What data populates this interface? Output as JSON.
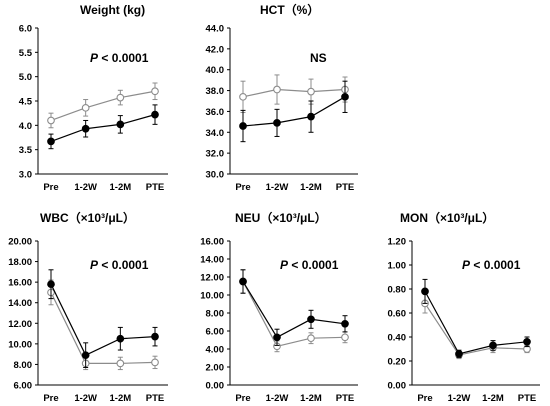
{
  "colors": {
    "series_dark": "#000000",
    "series_light": "#8c8c8c",
    "light_fill": "#ffffff",
    "axis": "#000000"
  },
  "chart_data": [
    {
      "type": "line",
      "title": "Weight (kg)",
      "annotation": {
        "italic": "P",
        "rest": " < 0.0001"
      },
      "categories": [
        "Pre",
        "1-2W",
        "1-2M",
        "PTE"
      ],
      "ylim": [
        3.0,
        6.0
      ],
      "yticks": [
        3.0,
        3.5,
        4.0,
        4.5,
        5.0,
        5.5,
        6.0
      ],
      "ytick_labels": [
        "3.0",
        "3.5",
        "4.0",
        "4.5",
        "5.0",
        "5.5",
        "6.0"
      ],
      "series": [
        {
          "style": "filled",
          "values": [
            3.67,
            3.93,
            4.02,
            4.22
          ],
          "errors": [
            0.15,
            0.17,
            0.18,
            0.2
          ]
        },
        {
          "style": "open",
          "values": [
            4.1,
            4.36,
            4.57,
            4.7
          ],
          "errors": [
            0.15,
            0.17,
            0.15,
            0.17
          ]
        }
      ]
    },
    {
      "type": "line",
      "title": "HCT（%）",
      "annotation": {
        "italic": "",
        "rest": "NS"
      },
      "categories": [
        "Pre",
        "1-2W",
        "1-2M",
        "PTE"
      ],
      "ylim": [
        30.0,
        44.0
      ],
      "yticks": [
        30.0,
        32.0,
        34.0,
        36.0,
        38.0,
        40.0,
        42.0,
        44.0
      ],
      "ytick_labels": [
        "30.0",
        "32.0",
        "34.0",
        "36.0",
        "38.0",
        "40.0",
        "42.0",
        "44.0"
      ],
      "series": [
        {
          "style": "filled",
          "values": [
            34.6,
            34.9,
            35.5,
            37.4
          ],
          "errors": [
            1.5,
            1.3,
            1.5,
            1.5
          ]
        },
        {
          "style": "open",
          "values": [
            37.4,
            38.1,
            37.9,
            38.1
          ],
          "errors": [
            1.5,
            1.4,
            1.2,
            1.2
          ]
        }
      ]
    },
    {
      "type": "line",
      "title": "WBC（×10³/μL）",
      "annotation": {
        "italic": "P",
        "rest": " < 0.0001"
      },
      "categories": [
        "Pre",
        "1-2W",
        "1-2M",
        "PTE"
      ],
      "ylim": [
        6.0,
        20.0
      ],
      "yticks": [
        6.0,
        8.0,
        10.0,
        12.0,
        14.0,
        16.0,
        18.0,
        20.0
      ],
      "ytick_labels": [
        "6.00",
        "8.00",
        "10.00",
        "12.00",
        "14.00",
        "16.00",
        "18.00",
        "20.00"
      ],
      "series": [
        {
          "style": "filled",
          "values": [
            15.8,
            8.9,
            10.5,
            10.7
          ],
          "errors": [
            1.4,
            1.2,
            1.1,
            0.9
          ]
        },
        {
          "style": "open",
          "values": [
            15.0,
            8.1,
            8.1,
            8.2
          ],
          "errors": [
            1.2,
            0.6,
            0.6,
            0.6
          ]
        }
      ]
    },
    {
      "type": "line",
      "title": "NEU（×10³/μL）",
      "annotation": {
        "italic": "P",
        "rest": " < 0.0001"
      },
      "categories": [
        "Pre",
        "1-2W",
        "1-2M",
        "PTE"
      ],
      "ylim": [
        0.0,
        16.0
      ],
      "yticks": [
        0.0,
        2.0,
        4.0,
        6.0,
        8.0,
        10.0,
        12.0,
        14.0,
        16.0
      ],
      "ytick_labels": [
        "0.00",
        "2.00",
        "4.00",
        "6.00",
        "8.00",
        "10.00",
        "12.00",
        "14.00",
        "16.00"
      ],
      "series": [
        {
          "style": "filled",
          "values": [
            11.5,
            5.3,
            7.3,
            6.8
          ],
          "errors": [
            1.3,
            0.9,
            1.0,
            0.9
          ]
        },
        {
          "style": "open",
          "values": [
            11.5,
            4.3,
            5.2,
            5.3
          ],
          "errors": [
            1.3,
            0.6,
            0.6,
            0.6
          ]
        }
      ]
    },
    {
      "type": "line",
      "title": "MON（×10³/μL）",
      "annotation": {
        "italic": "P",
        "rest": " < 0.0001"
      },
      "categories": [
        "Pre",
        "1-2W",
        "1-2M",
        "PTE"
      ],
      "ylim": [
        0.0,
        1.2
      ],
      "yticks": [
        0.0,
        0.2,
        0.4,
        0.6,
        0.8,
        1.0,
        1.2
      ],
      "ytick_labels": [
        "0.00",
        "0.20",
        "0.40",
        "0.60",
        "0.80",
        "1.00",
        "1.20"
      ],
      "series": [
        {
          "style": "filled",
          "values": [
            0.78,
            0.26,
            0.33,
            0.36
          ],
          "errors": [
            0.1,
            0.03,
            0.04,
            0.04
          ]
        },
        {
          "style": "open",
          "values": [
            0.68,
            0.25,
            0.31,
            0.3
          ],
          "errors": [
            0.08,
            0.03,
            0.04,
            0.03
          ]
        }
      ]
    }
  ]
}
